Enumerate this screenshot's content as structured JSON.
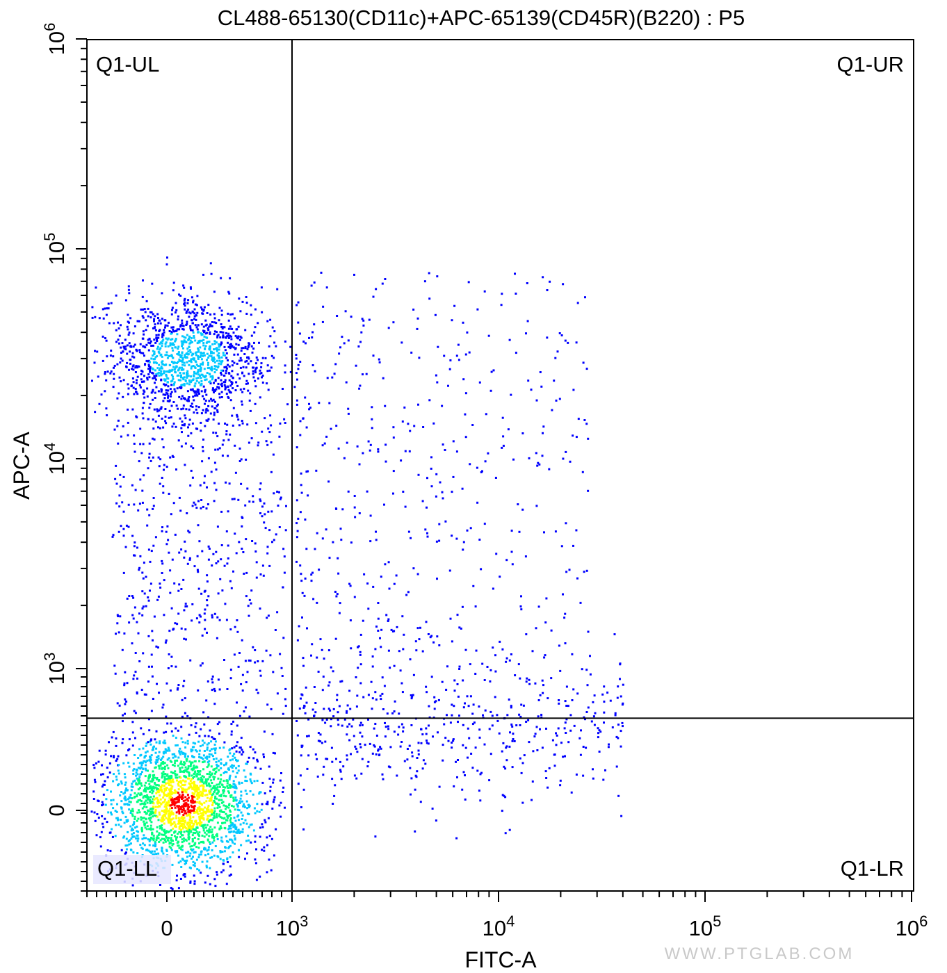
{
  "chart_data": {
    "type": "scatter",
    "subtype": "flow-cytometry-density-dot-plot",
    "title": "CL488-65130(CD11c)+APC-65139(CD45R)(B220) : P5",
    "xlabel": "FITC-A",
    "ylabel": "APC-A",
    "x_scale": "biexponential",
    "y_scale": "biexponential",
    "x_ticks": [
      {
        "value": 0,
        "base": "0",
        "exp": ""
      },
      {
        "value": 1000,
        "base": "10",
        "exp": "3"
      },
      {
        "value": 10000,
        "base": "10",
        "exp": "4"
      },
      {
        "value": 100000,
        "base": "10",
        "exp": "5"
      },
      {
        "value": 1000000,
        "base": "10",
        "exp": "6"
      }
    ],
    "y_ticks": [
      {
        "value": 0,
        "base": "0",
        "exp": ""
      },
      {
        "value": 1000,
        "base": "10",
        "exp": "3"
      },
      {
        "value": 10000,
        "base": "10",
        "exp": "4"
      },
      {
        "value": 100000,
        "base": "10",
        "exp": "5"
      },
      {
        "value": 1000000,
        "base": "10",
        "exp": "6"
      }
    ],
    "quadrant_gate": {
      "x": 1000,
      "y": 650
    },
    "quadrant_labels": {
      "UL": "Q1-UL",
      "UR": "Q1-UR",
      "LL": "Q1-LL",
      "LR": "Q1-LR"
    },
    "populations": [
      {
        "name": "",
        "x_center": 50,
        "y_center": 30000,
        "density": "high"
      },
      {
        "name": "",
        "x_center": 50,
        "y_center": 0,
        "density": "very-high"
      },
      {
        "name": "",
        "x_center": 5000,
        "y_center": 0,
        "density": "low"
      },
      {
        "name": "",
        "x_center": 4000,
        "y_center": 15000,
        "density": "low"
      }
    ],
    "colormap": [
      "#0000ff",
      "#00c8ff",
      "#00ff80",
      "#ffff00",
      "#ff0000"
    ]
  },
  "watermark": "WWW.PTGLAB.COM"
}
